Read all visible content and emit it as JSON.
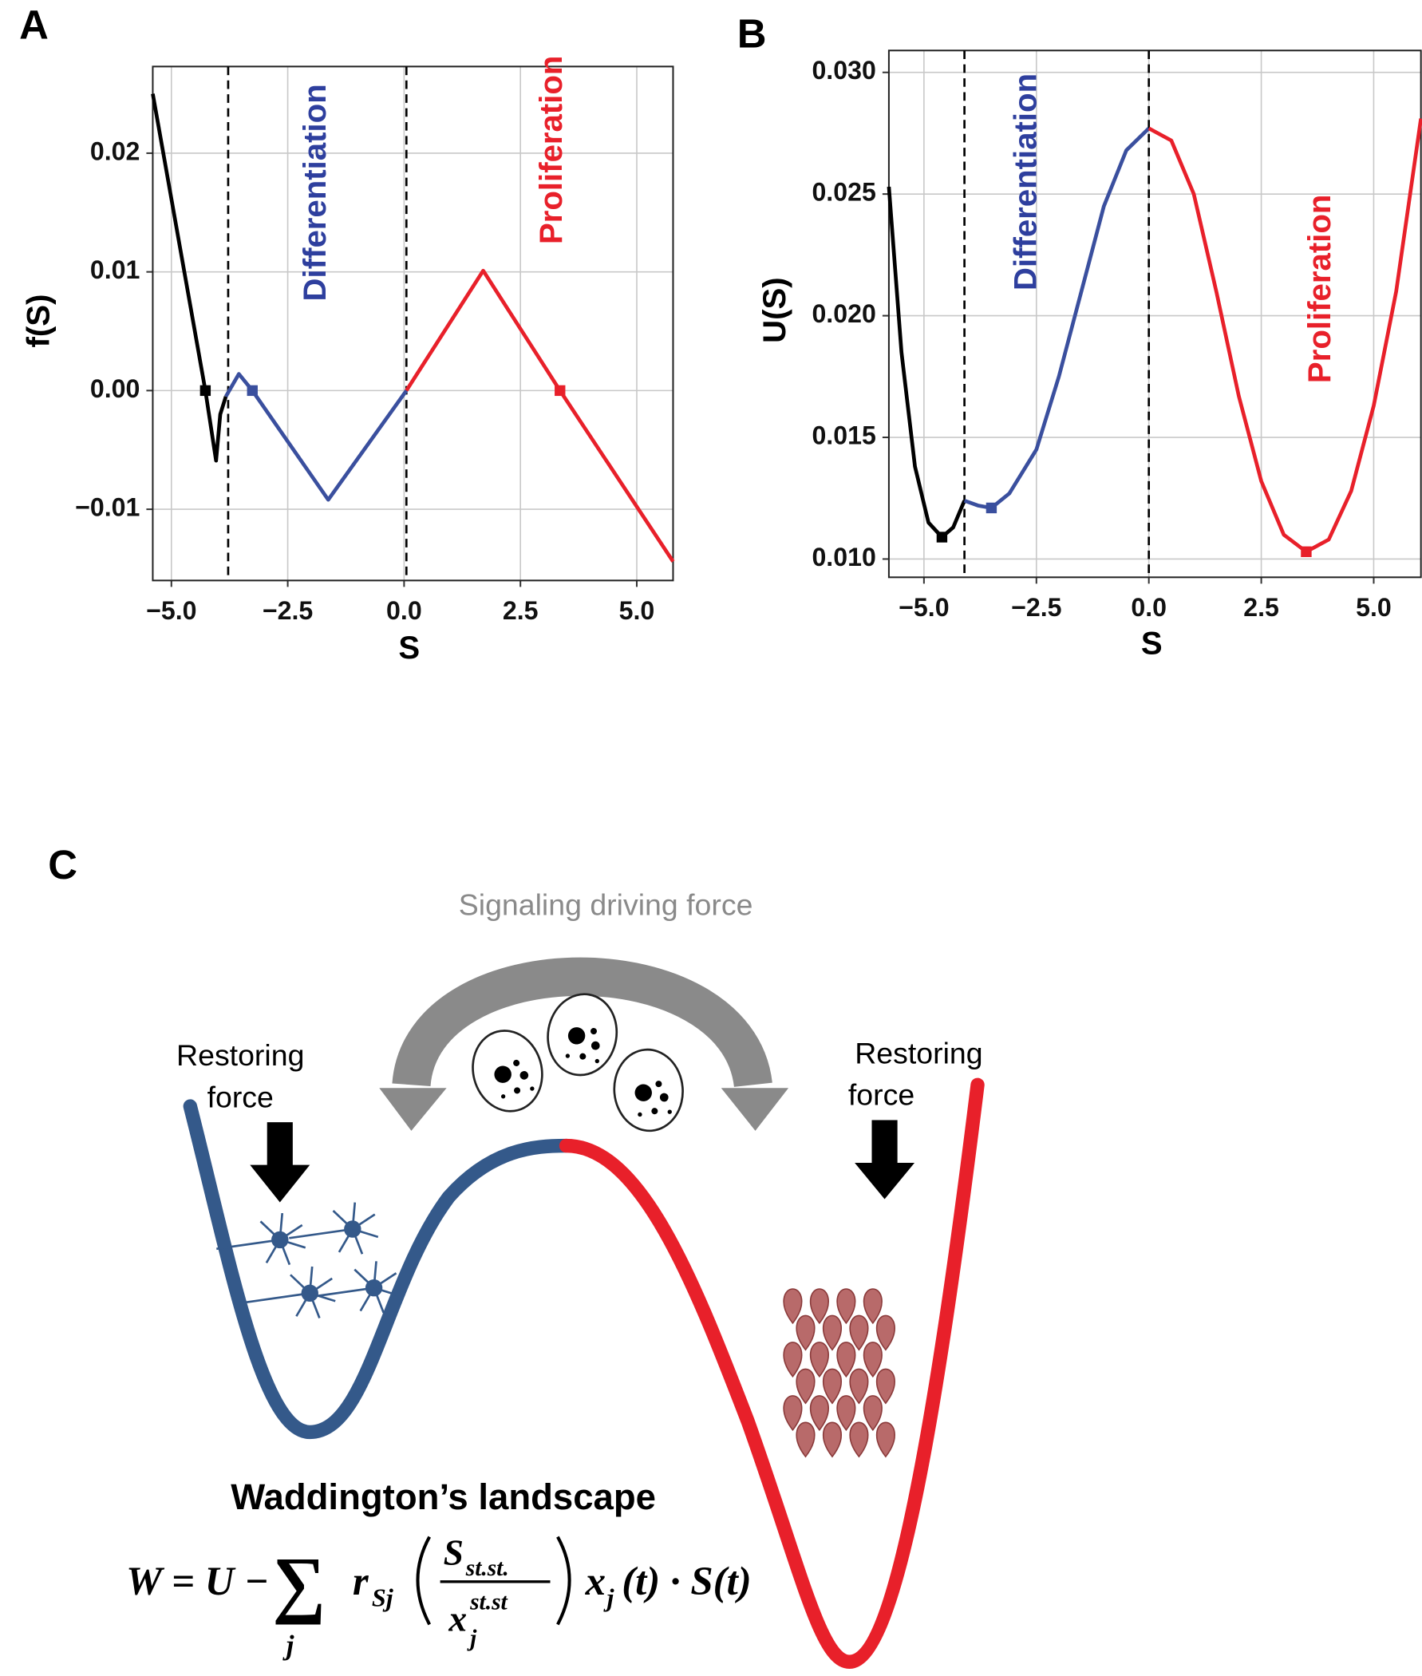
{
  "chart_data": [
    {
      "type": "line",
      "panel": "A",
      "xlabel": "S",
      "ylabel": "f(S)",
      "xlim": [
        -5.4,
        5.78
      ],
      "ylim": [
        -0.016,
        0.0273
      ],
      "xticks": [
        {
          "value": -5,
          "label": "−5.0"
        },
        {
          "value": -2.5,
          "label": "−2.5"
        },
        {
          "value": 0,
          "label": "0.0"
        },
        2.5,
        {
          "value": 5,
          "label": "5.0"
        }
      ],
      "yticks": [
        {
          "value": -0.01,
          "label": "−0.01"
        },
        {
          "value": 0,
          "label": "0.00"
        },
        0.01,
        0.02
      ],
      "grid": true,
      "series": [
        {
          "color": "#000000",
          "x": [
            -5.4,
            -4.27,
            -4.04,
            -3.95,
            -3.83
          ],
          "values": [
            0.025,
            0.0,
            -0.0059,
            -0.002,
            -0.0005
          ]
        },
        {
          "color": "#3a4f9e",
          "x": [
            -3.83,
            -3.55,
            -3.26,
            -1.63,
            0.05
          ],
          "values": [
            -0.0005,
            0.0014,
            0.0,
            -0.0092,
            0.0
          ]
        },
        {
          "color": "#e8202a",
          "x": [
            0.05,
            1.7,
            3.35,
            5.78
          ],
          "values": [
            0.0,
            0.0101,
            0.0,
            -0.0144
          ]
        }
      ],
      "points": [
        {
          "x": -4.27,
          "y": 0.0,
          "color": "#000000"
        },
        {
          "x": -3.26,
          "y": 0.0,
          "color": "#3a4f9e"
        },
        {
          "x": 3.35,
          "y": 0.0,
          "color": "#e8202a"
        }
      ],
      "vlines": [
        -3.78,
        0.05
      ],
      "annotations": [
        {
          "text": "Differentiation",
          "color": "#2e3f9e"
        },
        {
          "text": "Proliferation",
          "color": "#e8202a"
        }
      ]
    },
    {
      "type": "line",
      "panel": "B",
      "xlabel": "S",
      "ylabel": "U(S)",
      "xlim": [
        -5.78,
        6.05
      ],
      "ylim": [
        0.00925,
        0.0309
      ],
      "xticks": [
        {
          "value": -5,
          "label": "−5.0"
        },
        {
          "value": -2.5,
          "label": "−2.5"
        },
        {
          "value": 0,
          "label": "0.0"
        },
        2.5,
        {
          "value": 5,
          "label": "5.0"
        }
      ],
      "yticks": [
        {
          "value": 0.01,
          "label": "0.010"
        },
        0.015,
        {
          "value": 0.02,
          "label": "0.020"
        },
        0.025,
        {
          "value": 0.03,
          "label": "0.030"
        }
      ],
      "grid": true,
      "series": [
        {
          "color": "#000000",
          "x": [
            -5.78,
            -5.5,
            -5.2,
            -4.9,
            -4.6,
            -4.35,
            -4.1
          ],
          "values": [
            0.0253,
            0.0185,
            0.0138,
            0.0115,
            0.0109,
            0.0113,
            0.0124
          ]
        },
        {
          "color": "#3a4f9e",
          "x": [
            -4.1,
            -3.8,
            -3.5,
            -3.1,
            -2.5,
            -2.0,
            -1.5,
            -1.0,
            -0.5,
            0.0
          ],
          "values": [
            0.0124,
            0.0122,
            0.0121,
            0.0127,
            0.0145,
            0.0175,
            0.021,
            0.0245,
            0.0268,
            0.0277
          ]
        },
        {
          "color": "#e8202a",
          "x": [
            0.0,
            0.5,
            1.0,
            1.5,
            2.0,
            2.5,
            3.0,
            3.5,
            4.0,
            4.5,
            5.0,
            5.5,
            6.05
          ],
          "values": [
            0.0277,
            0.0272,
            0.025,
            0.021,
            0.0167,
            0.0132,
            0.011,
            0.0103,
            0.0108,
            0.0128,
            0.0163,
            0.021,
            0.0281
          ]
        }
      ],
      "points": [
        {
          "x": -4.6,
          "y": 0.0109,
          "color": "#000000"
        },
        {
          "x": -3.5,
          "y": 0.0121,
          "color": "#3a4f9e"
        },
        {
          "x": 3.5,
          "y": 0.0103,
          "color": "#e8202a"
        }
      ],
      "vlines": [
        -4.1,
        0.0
      ],
      "annotations": [
        {
          "text": "Differentiation",
          "color": "#2e3f9e"
        },
        {
          "text": "Proliferation",
          "color": "#e8202a"
        }
      ]
    }
  ],
  "panel_c": {
    "label": "C",
    "signal": "Signaling driving force",
    "restoring_left": [
      "Restoring",
      "force"
    ],
    "restoring_right": [
      "Restoring",
      "force"
    ],
    "caption": "Waddington’s landscape",
    "equation": {
      "lhs": "W = U −",
      "sum": "∑",
      "sum_index": "j",
      "r": "r",
      "r_sub": "Sj",
      "num": "S",
      "num_sub": "st.st.",
      "den": "x",
      "den_sup": "st.st",
      "den_sub": "j",
      "x": "x",
      "x_sub": "j",
      "tail": "(t) · S(t)"
    }
  }
}
